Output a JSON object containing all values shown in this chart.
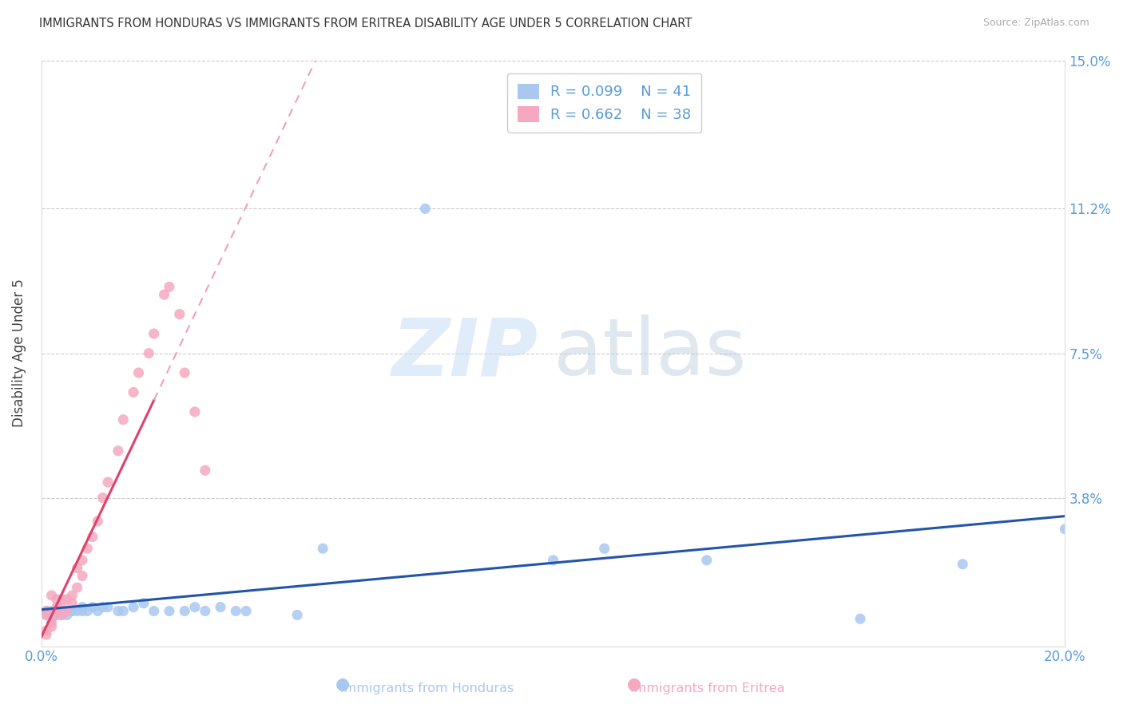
{
  "title": "IMMIGRANTS FROM HONDURAS VS IMMIGRANTS FROM ERITREA DISABILITY AGE UNDER 5 CORRELATION CHART",
  "source": "Source: ZipAtlas.com",
  "ylabel": "Disability Age Under 5",
  "xlim": [
    0.0,
    0.2
  ],
  "ylim": [
    0.0,
    0.15
  ],
  "honduras_R": 0.099,
  "honduras_N": 41,
  "eritrea_R": 0.662,
  "eritrea_N": 38,
  "honduras_color": "#a8c8f0",
  "eritrea_color": "#f5a8c0",
  "honduras_line_color": "#2255aa",
  "eritrea_line_color": "#e0406a",
  "eritrea_dash_color": "#f0a0b8",
  "honduras_scatter_x": [
    0.001,
    0.001,
    0.002,
    0.002,
    0.003,
    0.003,
    0.004,
    0.004,
    0.005,
    0.005,
    0.006,
    0.006,
    0.007,
    0.008,
    0.008,
    0.009,
    0.01,
    0.011,
    0.012,
    0.013,
    0.015,
    0.016,
    0.018,
    0.02,
    0.022,
    0.025,
    0.028,
    0.03,
    0.032,
    0.035,
    0.038,
    0.04,
    0.05,
    0.055,
    0.075,
    0.1,
    0.11,
    0.13,
    0.16,
    0.18,
    0.2
  ],
  "honduras_scatter_y": [
    0.008,
    0.009,
    0.007,
    0.009,
    0.008,
    0.009,
    0.008,
    0.009,
    0.008,
    0.009,
    0.009,
    0.009,
    0.009,
    0.01,
    0.009,
    0.009,
    0.01,
    0.009,
    0.01,
    0.01,
    0.009,
    0.009,
    0.01,
    0.011,
    0.009,
    0.009,
    0.009,
    0.01,
    0.009,
    0.01,
    0.009,
    0.009,
    0.008,
    0.025,
    0.112,
    0.022,
    0.025,
    0.022,
    0.007,
    0.021,
    0.03
  ],
  "eritrea_scatter_x": [
    0.001,
    0.001,
    0.001,
    0.001,
    0.002,
    0.002,
    0.002,
    0.003,
    0.003,
    0.003,
    0.004,
    0.004,
    0.004,
    0.005,
    0.005,
    0.006,
    0.006,
    0.007,
    0.007,
    0.008,
    0.008,
    0.009,
    0.01,
    0.011,
    0.012,
    0.013,
    0.015,
    0.016,
    0.018,
    0.019,
    0.021,
    0.022,
    0.024,
    0.025,
    0.027,
    0.028,
    0.03,
    0.032
  ],
  "eritrea_scatter_y": [
    0.003,
    0.004,
    0.008,
    0.009,
    0.005,
    0.006,
    0.013,
    0.008,
    0.01,
    0.012,
    0.008,
    0.01,
    0.012,
    0.009,
    0.012,
    0.011,
    0.013,
    0.015,
    0.02,
    0.018,
    0.022,
    0.025,
    0.028,
    0.032,
    0.038,
    0.042,
    0.05,
    0.058,
    0.065,
    0.07,
    0.075,
    0.08,
    0.09,
    0.092,
    0.085,
    0.07,
    0.06,
    0.045
  ]
}
